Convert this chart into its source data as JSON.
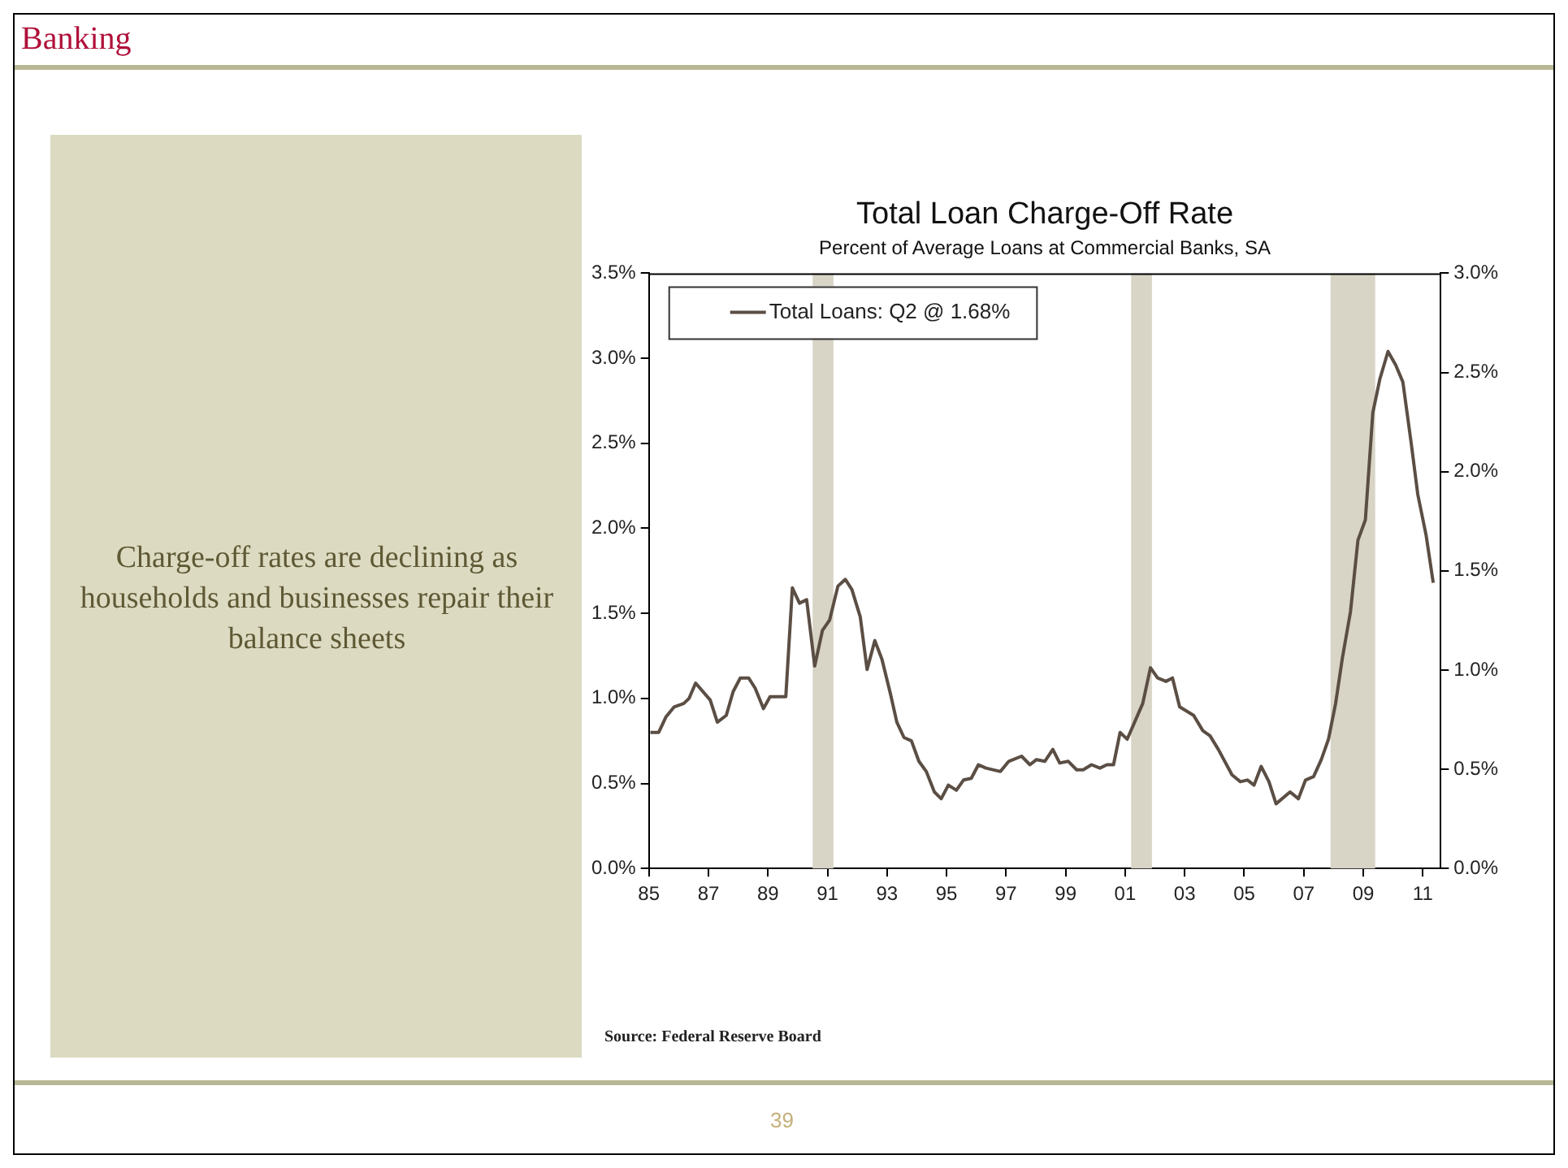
{
  "chart_data": {
    "type": "line",
    "title": "Total Loan Charge-Off Rate",
    "subtitle": "Percent of Average Loans at Commercial Banks, SA",
    "annotations": [
      "Banking",
      "Charge-off rates are declining as households and businesses repair their balance sheets",
      "Source: Federal Reserve Board",
      "39"
    ],
    "x": [
      1985.05,
      1985.33,
      1985.57,
      1985.85,
      1986.17,
      1986.35,
      1986.57,
      1987.06,
      1987.3,
      1987.6,
      1987.83,
      1988.07,
      1988.35,
      1988.57,
      1988.85,
      1989.07,
      1989.6,
      1989.82,
      1990.06,
      1990.3,
      1990.57,
      1990.83,
      1991.07,
      1991.35,
      1991.6,
      1991.82,
      1992.1,
      1992.33,
      1992.59,
      1992.83,
      1993.11,
      1993.33,
      1993.57,
      1993.82,
      1994.07,
      1994.32,
      1994.59,
      1994.82,
      1995.06,
      1995.33,
      1995.57,
      1995.83,
      1996.07,
      1996.32,
      1996.81,
      1997.09,
      1997.52,
      1997.8,
      1998.02,
      1998.3,
      1998.57,
      1998.8,
      1999.09,
      1999.37,
      1999.59,
      1999.87,
      2000.15,
      2000.39,
      2000.61,
      2000.83,
      2001.07,
      2001.59,
      2001.85,
      2002.09,
      2002.37,
      2002.59,
      2002.83,
      2003.3,
      2003.61,
      2003.85,
      2004.13,
      2004.59,
      2004.87,
      2005.11,
      2005.33,
      2005.57,
      2005.83,
      2006.07,
      2006.54,
      2006.82,
      2007.06,
      2007.33,
      2007.59,
      2007.83,
      2008.07,
      2008.3,
      2008.57,
      2008.82,
      2009.07,
      2009.32,
      2009.56,
      2009.83,
      2010.09,
      2010.33,
      2010.61,
      2010.83,
      2011.11,
      2011.35
    ],
    "series": [
      {
        "name": "Total Loans: Q2 @ 1.68%",
        "color": "#5b4e44",
        "values": [
          0.8,
          0.8,
          0.89,
          0.95,
          0.97,
          1.0,
          1.09,
          0.99,
          0.86,
          0.9,
          1.04,
          1.12,
          1.12,
          1.06,
          0.94,
          1.01,
          1.01,
          1.65,
          1.56,
          1.58,
          1.19,
          1.4,
          1.46,
          1.66,
          1.7,
          1.64,
          1.48,
          1.17,
          1.34,
          1.23,
          1.03,
          0.86,
          0.77,
          0.75,
          0.63,
          0.57,
          0.45,
          0.41,
          0.49,
          0.46,
          0.52,
          0.53,
          0.61,
          0.59,
          0.57,
          0.63,
          0.66,
          0.61,
          0.64,
          0.63,
          0.7,
          0.62,
          0.63,
          0.58,
          0.58,
          0.61,
          0.59,
          0.61,
          0.61,
          0.8,
          0.76,
          0.97,
          1.18,
          1.12,
          1.1,
          1.12,
          0.95,
          0.9,
          0.81,
          0.78,
          0.7,
          0.55,
          0.51,
          0.52,
          0.49,
          0.6,
          0.51,
          0.38,
          0.45,
          0.41,
          0.52,
          0.54,
          0.64,
          0.76,
          0.97,
          1.24,
          1.51,
          1.93,
          2.05,
          2.68,
          2.88,
          3.04,
          2.96,
          2.86,
          2.5,
          2.2,
          1.96,
          1.68
        ]
      }
    ],
    "xlim": [
      1985,
      2011.6
    ],
    "xticks": [
      {
        "value": 1985,
        "label": "85"
      },
      {
        "value": 1987,
        "label": "87"
      },
      {
        "value": 1989,
        "label": "89"
      },
      {
        "value": 1991,
        "label": "91"
      },
      {
        "value": 1993,
        "label": "93"
      },
      {
        "value": 1995,
        "label": "95"
      },
      {
        "value": 1997,
        "label": "97"
      },
      {
        "value": 1999,
        "label": "99"
      },
      {
        "value": 2001,
        "label": "01"
      },
      {
        "value": 2003,
        "label": "03"
      },
      {
        "value": 2005,
        "label": "05"
      },
      {
        "value": 2007,
        "label": "07"
      },
      {
        "value": 2009,
        "label": "09"
      },
      {
        "value": 2011,
        "label": "11"
      }
    ],
    "ylim": [
      0,
      3.5
    ],
    "yticks": [
      {
        "value": 0,
        "label": "0.0%"
      },
      {
        "value": 0.5,
        "label": "0.5%"
      },
      {
        "value": 1,
        "label": "1.0%"
      },
      {
        "value": 1.5,
        "label": "1.5%"
      },
      {
        "value": 2,
        "label": "2.0%"
      },
      {
        "value": 2.5,
        "label": "2.5%"
      },
      {
        "value": 3,
        "label": "3.0%"
      },
      {
        "value": 3.5,
        "label": "3.5%"
      }
    ],
    "y2lim": [
      0,
      3
    ],
    "y2ticks": [
      {
        "value": 0,
        "label": "0.0%"
      },
      {
        "value": 0.5,
        "label": "0.5%"
      },
      {
        "value": 1,
        "label": "1.0%"
      },
      {
        "value": 1.5,
        "label": "1.5%"
      },
      {
        "value": 2,
        "label": "2.0%"
      },
      {
        "value": 2.5,
        "label": "2.5%"
      },
      {
        "value": 3,
        "label": "3.0%"
      }
    ],
    "bands": [
      {
        "axis": "x",
        "from": 1990.5,
        "to": 1991.2,
        "color": "#d8d4c6"
      },
      {
        "axis": "x",
        "from": 2001.2,
        "to": 2001.9,
        "color": "#d8d4c6"
      },
      {
        "axis": "x",
        "from": 2007.9,
        "to": 2009.4,
        "color": "#d8d4c6"
      }
    ],
    "legend": "top left",
    "marker": "none",
    "line_style": "solid"
  }
}
